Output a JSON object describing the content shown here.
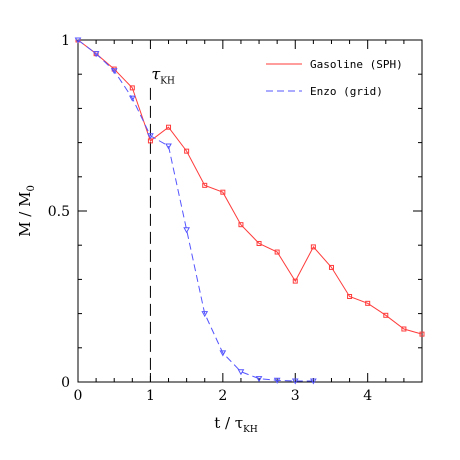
{
  "chart_data": {
    "type": "line",
    "title": "",
    "xlim": [
      0,
      4.75
    ],
    "ylim": [
      0,
      1
    ],
    "x_ticks": [
      0,
      1,
      2,
      3,
      4
    ],
    "x_tick_labels": [
      "0",
      "1",
      "2",
      "3",
      "4"
    ],
    "y_ticks": [
      0,
      0.5,
      1
    ],
    "y_tick_labels": [
      "0",
      "0.5",
      "1"
    ],
    "xlabel": {
      "main": "t / τ",
      "sub": "KH"
    },
    "ylabel": {
      "main": "M / M",
      "sub": "0"
    },
    "grid": false,
    "legend_position": "top-right",
    "annotation": {
      "main": "τ",
      "sub": "KH",
      "x": 1
    },
    "series": [
      {
        "name": "Gasoline (SPH)",
        "color": "#ff3b3b",
        "style": "solid",
        "marker": "square",
        "x": [
          0,
          0.25,
          0.5,
          0.75,
          1.0,
          1.25,
          1.5,
          1.75,
          2.0,
          2.25,
          2.5,
          2.75,
          3.0,
          3.25,
          3.5,
          3.75,
          4.0,
          4.25,
          4.5,
          4.75
        ],
        "y": [
          1.0,
          0.96,
          0.915,
          0.86,
          0.705,
          0.745,
          0.675,
          0.575,
          0.555,
          0.46,
          0.405,
          0.38,
          0.295,
          0.395,
          0.335,
          0.25,
          0.23,
          0.195,
          0.155,
          0.14
        ]
      },
      {
        "name": "Enzo (grid)",
        "color": "#5555ff",
        "style": "dashed",
        "marker": "triangle",
        "x": [
          0,
          0.25,
          0.5,
          0.75,
          1.0,
          1.25,
          1.5,
          1.75,
          2.0,
          2.25,
          2.5,
          2.75,
          3.0,
          3.25
        ],
        "y": [
          1.0,
          0.96,
          0.91,
          0.83,
          0.72,
          0.69,
          0.445,
          0.2,
          0.085,
          0.03,
          0.01,
          0.005,
          0.003,
          0.003
        ]
      }
    ]
  }
}
